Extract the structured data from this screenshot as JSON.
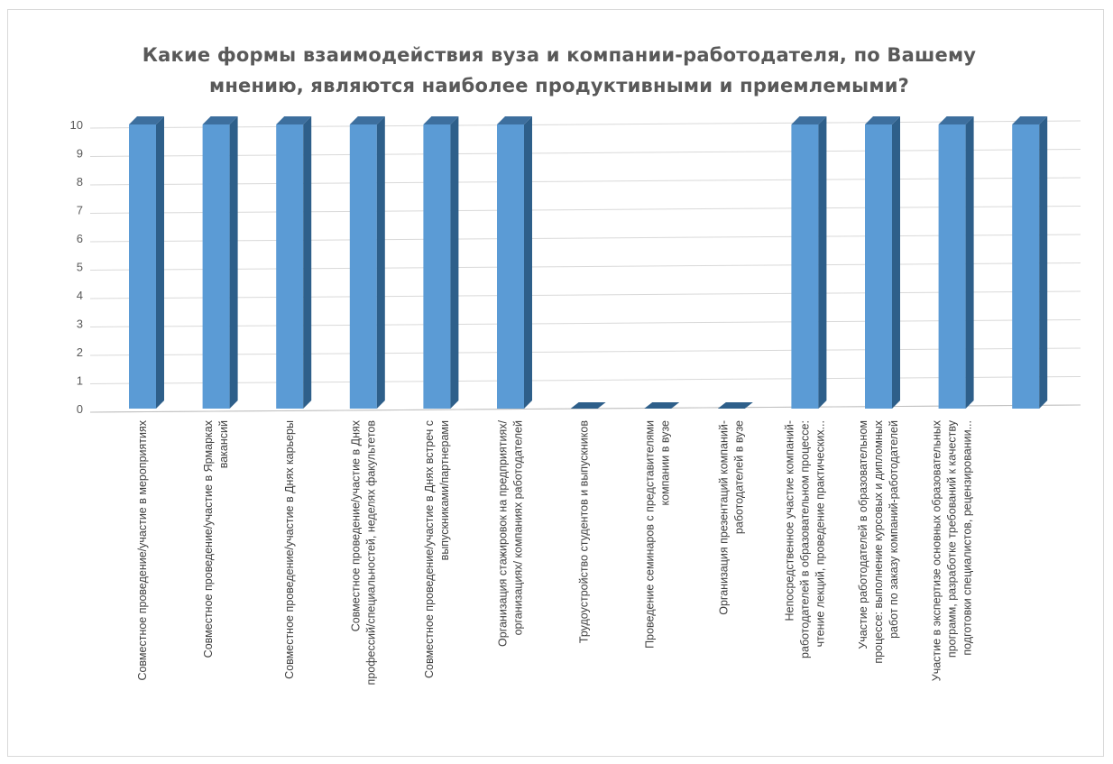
{
  "chart_data": {
    "type": "bar",
    "title": "Какие формы взаимодействия  вуза и компании-работодателя,  по Вашему мнению, являются  наиболее продуктивными  и приемлемыми?",
    "title_lines": [
      "Какие формы взаимодействия  вуза и компании-работодателя,  по Вашему",
      "мнению, являются  наиболее продуктивными  и приемлемыми?"
    ],
    "xlabel": "",
    "ylabel": "",
    "ylim": [
      0,
      10
    ],
    "yticks": [
      "0",
      "1",
      "2",
      "3",
      "4",
      "5",
      "6",
      "7",
      "8",
      "9",
      "10"
    ],
    "grid": true,
    "legend": "none",
    "bar_color": "#5b9bd5",
    "bar_side_color": "#2e5f8a",
    "bar_top_color": "#3d6f9e",
    "categories": [
      [
        "Совместное проведение/участие в мероприятиях"
      ],
      [
        "Совместное проведение/участие в Ярмарках",
        "вакансий"
      ],
      [
        "Совместное проведение/участие в Днях карьеры"
      ],
      [
        "Совместное проведение/участие в Днях",
        "профессий/специальностей, неделях факультетов"
      ],
      [
        "Совместное проведение/участие в Днях встреч с",
        "выпускниками/партнерами"
      ],
      [
        "Организация стажировок на предприятиях/",
        "организациях/ компаниях работодателей"
      ],
      [
        "Трудоустройство студентов и выпускников"
      ],
      [
        "Проведение семинаров с представителями",
        "компании в вузе"
      ],
      [
        "Организация презентаций компаний-",
        "работодателей в вузе"
      ],
      [
        "Непосредственное участие компаний-",
        "работодателей в образовательном процессе:",
        "чтение лекций, проведение практических..."
      ],
      [
        "Участие работодателей в образовательном",
        "процессе: выполнение курсовых и дипломных",
        "работ по заказу компаний-работодателей"
      ],
      [
        "Участие в экспертизе основных образовательных",
        "программ, разработке требований к качеству",
        "подготовки специалистов, рецензировании..."
      ],
      []
    ],
    "values": [
      10,
      10,
      10,
      10,
      10,
      10,
      0,
      0,
      0,
      10,
      10,
      10,
      10
    ]
  }
}
